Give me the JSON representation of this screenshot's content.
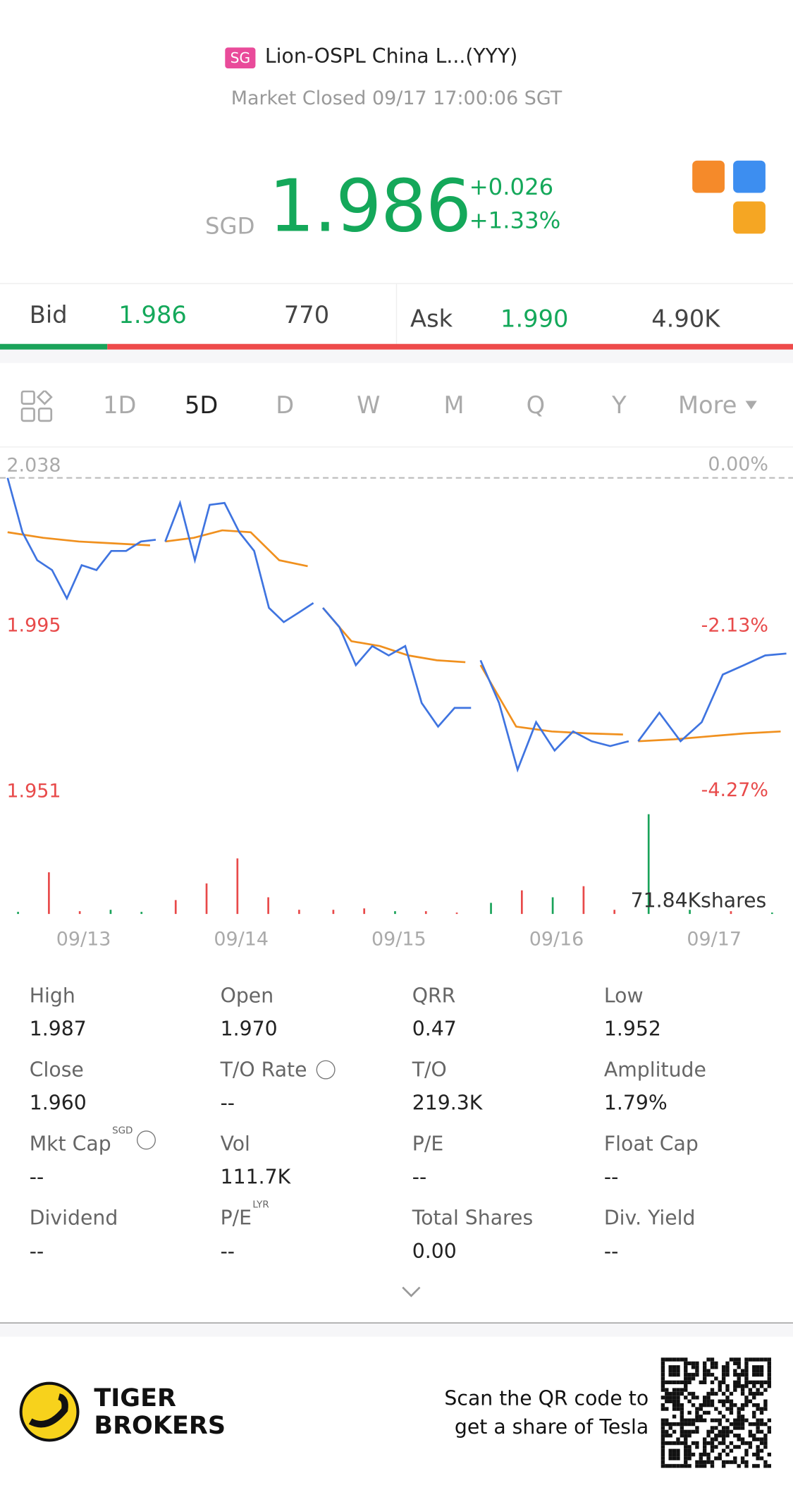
{
  "header": {
    "badge": "SG",
    "title": "Lion-OSPL China L...(YYY)",
    "status": "Market Closed 09/17 17:00:06 SGT",
    "currency": "SGD",
    "price": "1.986",
    "change": "+0.026",
    "change_pct": "+1.33%"
  },
  "quote": {
    "bid_label": "Bid",
    "bid": "1.986",
    "bid_size": "770",
    "ask_label": "Ask",
    "ask": "1.990",
    "ask_size": "4.90K"
  },
  "tabs": [
    "1D",
    "5D",
    "D",
    "W",
    "M",
    "Q",
    "Y",
    "More"
  ],
  "active_tab": 1,
  "chart": {
    "type": "line",
    "ylim": [
      1.951,
      2.038
    ],
    "yticks": [
      2.038,
      1.995,
      1.951
    ],
    "pct_ticks": [
      {
        "value": 2.038,
        "label": "0.00%"
      },
      {
        "value": 1.995,
        "label": "-2.13%"
      },
      {
        "value": 1.951,
        "label": "-4.27%"
      }
    ],
    "price_color": "#3f74e0",
    "avg_color": "#f0901e",
    "volume_label": "71.84Kshares",
    "volume_max": 71.84,
    "days": [
      {
        "date": "09/13",
        "price": [
          2.038,
          2.0235,
          2.016,
          2.0134,
          2.0058,
          2.0147,
          2.0134,
          2.0185,
          2.0185,
          2.021,
          2.0215
        ],
        "avg": [
          2.0235,
          2.022,
          2.021,
          2.0205,
          2.02
        ],
        "volume": [
          1.5,
          30,
          2,
          3,
          1.5
        ],
        "volume_colors": [
          "#1aa35a",
          "#e84a4a",
          "#e84a4a",
          "#1aa35a",
          "#1aa35a"
        ]
      },
      {
        "date": "09/14",
        "price": [
          2.021,
          2.0313,
          2.016,
          2.0308,
          2.0313,
          2.0235,
          2.0185,
          2.0033,
          1.9995,
          2.002,
          2.0046
        ],
        "avg": [
          2.021,
          2.022,
          2.024,
          2.0235,
          2.016,
          2.0144
        ],
        "volume": [
          10,
          22,
          40,
          12,
          3
        ],
        "volume_colors": [
          "#e84a4a",
          "#e84a4a",
          "#e84a4a",
          "#e84a4a",
          "#e84a4a"
        ]
      },
      {
        "date": "09/15",
        "price": [
          2.0033,
          1.9982,
          1.988,
          1.9931,
          1.9906,
          1.9931,
          1.9779,
          1.9716,
          1.9766,
          1.9766
        ],
        "avg": [
          2.0033,
          1.9944,
          1.9931,
          1.9906,
          1.9893,
          1.9888
        ],
        "volume": [
          3,
          4,
          2,
          2,
          1
        ],
        "volume_colors": [
          "#e84a4a",
          "#e84a4a",
          "#1aa35a",
          "#e84a4a",
          "#e84a4a"
        ]
      },
      {
        "date": "09/16",
        "price": [
          1.9893,
          1.9779,
          1.9601,
          1.9728,
          1.9652,
          1.9703,
          1.9677,
          1.9664,
          1.9677
        ],
        "avg": [
          1.988,
          1.9716,
          1.9703,
          1.9698,
          1.9695
        ],
        "volume": [
          8,
          17,
          12,
          20,
          3
        ],
        "volume_colors": [
          "#1aa35a",
          "#e84a4a",
          "#1aa35a",
          "#e84a4a",
          "#e84a4a"
        ]
      },
      {
        "date": "09/17",
        "price": [
          1.9677,
          1.9753,
          1.9677,
          1.9728,
          1.9855,
          1.988,
          1.9906,
          1.9911
        ],
        "avg": [
          1.9677,
          1.9682,
          1.969,
          1.9698,
          1.9703
        ],
        "volume": [
          71.84,
          3,
          2,
          1
        ],
        "volume_colors": [
          "#1aa35a",
          "#1aa35a",
          "#e84a4a",
          "#1aa35a"
        ]
      }
    ]
  },
  "stats": [
    {
      "label": "High",
      "value": "1.987"
    },
    {
      "label": "Open",
      "value": "1.970"
    },
    {
      "label": "QRR",
      "value": "0.47"
    },
    {
      "label": "Low",
      "value": "1.952"
    },
    {
      "label": "Close",
      "value": "1.960"
    },
    {
      "label": "T/O Rate",
      "value": "--"
    },
    {
      "label": "T/O",
      "value": "219.3K"
    },
    {
      "label": "Amplitude",
      "value": "1.79%"
    },
    {
      "label": "Mkt Cap",
      "sup": "SGD",
      "value": "--"
    },
    {
      "label": "Vol",
      "value": "111.7K"
    },
    {
      "label": "P/E",
      "value": "--"
    },
    {
      "label": "Float Cap",
      "value": "--"
    },
    {
      "label": "Dividend",
      "value": "--"
    },
    {
      "label": "P/E",
      "sup": "LYR",
      "value": "--"
    },
    {
      "label": "Total Shares",
      "value": "0.00"
    },
    {
      "label": "Div. Yield",
      "value": "--"
    }
  ],
  "footer": {
    "brand_line1": "TIGER",
    "brand_line2": "BROKERS",
    "qr_line1": "Scan the QR code to",
    "qr_line2": "get a share of Tesla"
  }
}
